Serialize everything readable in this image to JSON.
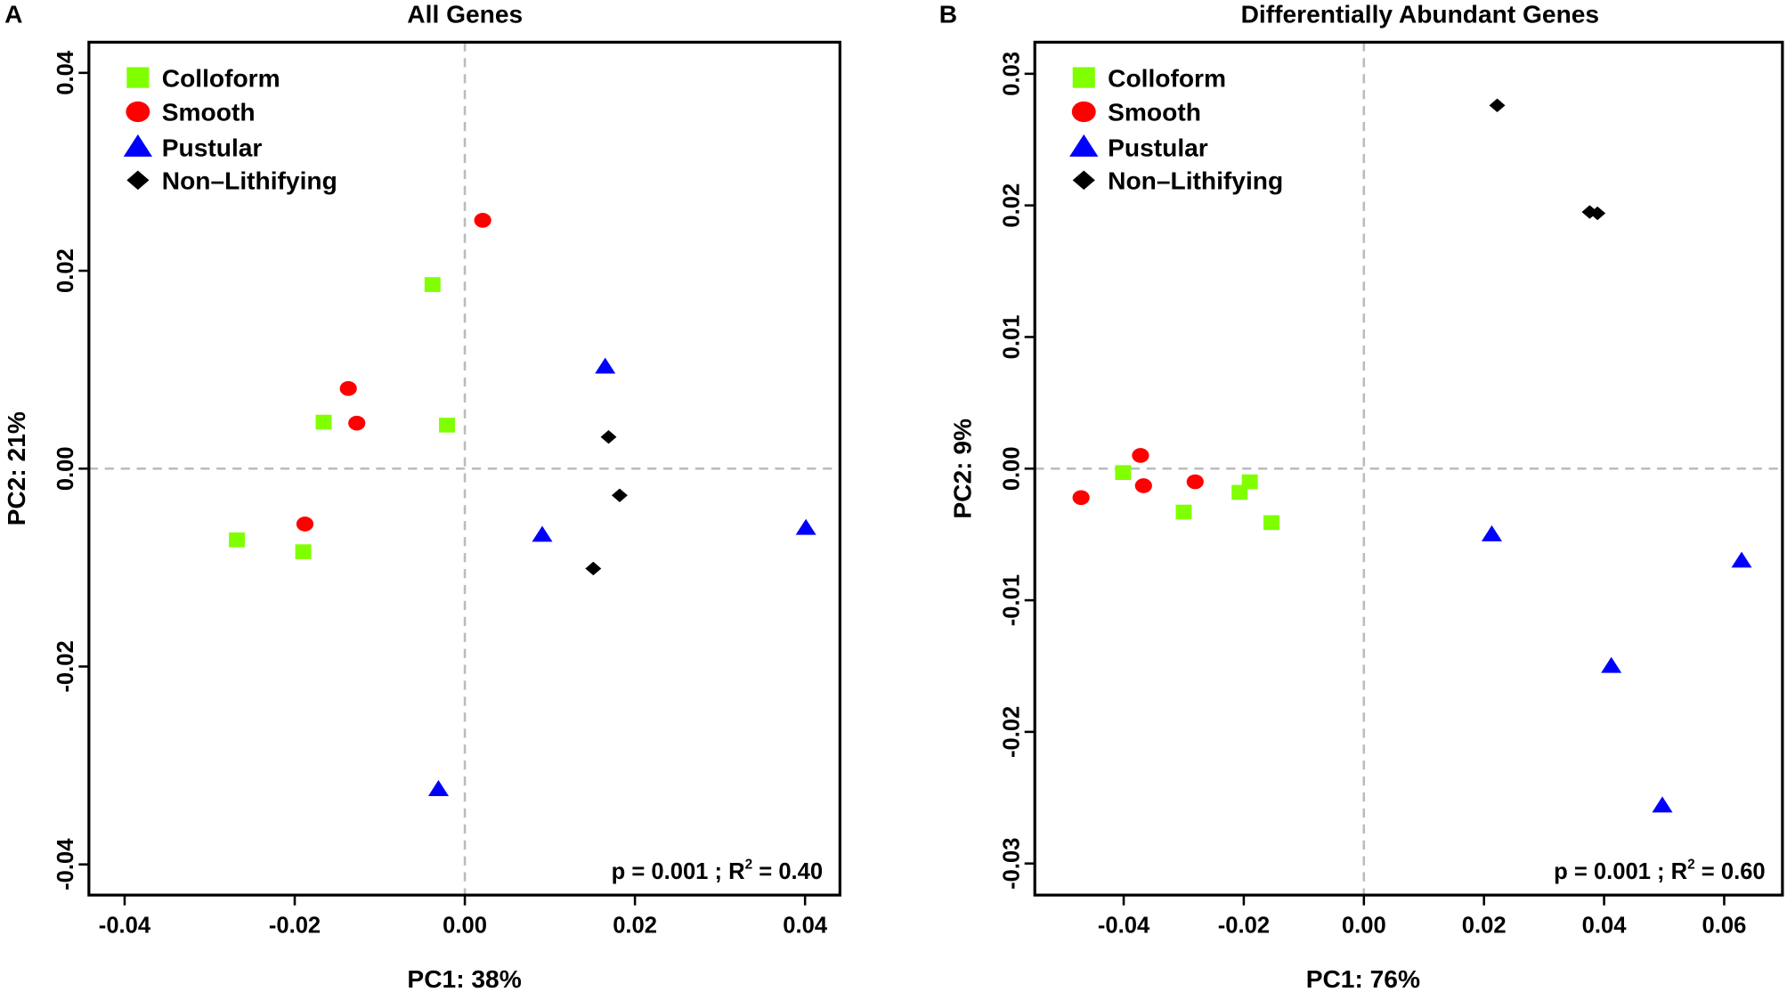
{
  "colors": {
    "Colloform": "#80ff00",
    "Smooth": "#ff0000",
    "Pustular": "#0000ff",
    "Non-Lithifying": "#000000",
    "zero_line": "#bbbbbb"
  },
  "chart_data": [
    {
      "type": "scatter",
      "panel_label": "A",
      "title": "All Genes",
      "xlabel": "PC1: 38%",
      "ylabel": "PC2: 21%",
      "xlim": [
        -0.0442,
        0.0441
      ],
      "ylim": [
        -0.0431,
        0.0431
      ],
      "xticks": [
        "-0.04",
        "-0.02",
        "0.00",
        "0.02",
        "0.04"
      ],
      "yticks": [
        "-0.04",
        "-0.02",
        "0.00",
        "0.02",
        "0.04"
      ],
      "xtick_values": [
        -0.04,
        -0.02,
        0,
        0.02,
        0.04
      ],
      "ytick_values": [
        -0.04,
        -0.02,
        0,
        0.02,
        0.04
      ],
      "legend": [
        "Colloform",
        "Smooth",
        "Pustular",
        "Non–Lithifying"
      ],
      "legend_position": "top-left",
      "annotation": {
        "p": "p = 0.001  ; R",
        "sup": "2",
        "r2": " = 0.40"
      },
      "series": [
        {
          "name": "Colloform",
          "shape": "square",
          "points": [
            [
              -0.0038,
              0.0186
            ],
            [
              -0.0166,
              0.0047
            ],
            [
              -0.0021,
              0.0044
            ],
            [
              -0.0268,
              -0.0072
            ],
            [
              -0.019,
              -0.0084
            ]
          ]
        },
        {
          "name": "Smooth",
          "shape": "circle",
          "points": [
            [
              0.0021,
              0.0251
            ],
            [
              -0.0137,
              0.0081
            ],
            [
              -0.0127,
              0.0046
            ],
            [
              -0.0188,
              -0.0056
            ]
          ]
        },
        {
          "name": "Pustular",
          "shape": "triangle",
          "points": [
            [
              0.0165,
              0.0103
            ],
            [
              0.0091,
              -0.0067
            ],
            [
              0.0401,
              -0.006
            ],
            [
              -0.0031,
              -0.0324
            ]
          ]
        },
        {
          "name": "Non-Lithifying",
          "shape": "diamond",
          "points": [
            [
              0.0169,
              0.0032
            ],
            [
              0.0182,
              -0.0027
            ],
            [
              0.0151,
              -0.0101
            ]
          ]
        }
      ]
    },
    {
      "type": "scatter",
      "panel_label": "B",
      "title": "Differentially Abundant Genes",
      "xlabel": "PC1: 76%",
      "ylabel": "PC2: 9%",
      "xlim": [
        -0.0548,
        0.0697
      ],
      "ylim": [
        -0.0324,
        0.0324
      ],
      "xticks": [
        "-0.04",
        "-0.02",
        "0.00",
        "0.02",
        "0.04",
        "0.06"
      ],
      "yticks": [
        "-0.03",
        "-0.02",
        "-0.01",
        "0.00",
        "0.01",
        "0.02",
        "0.03"
      ],
      "xtick_values": [
        -0.04,
        -0.02,
        0,
        0.02,
        0.04,
        0.06
      ],
      "ytick_values": [
        -0.03,
        -0.02,
        -0.01,
        0,
        0.01,
        0.02,
        0.03
      ],
      "legend": [
        "Colloform",
        "Smooth",
        "Pustular",
        "Non–Lithifying"
      ],
      "legend_position": "top-left",
      "annotation": {
        "p": "p = 0.001  ; R",
        "sup": "2",
        "r2": " = 0.60"
      },
      "series": [
        {
          "name": "Colloform",
          "shape": "square",
          "points": [
            [
              -0.0401,
              -0.0003
            ],
            [
              -0.03,
              -0.0033
            ],
            [
              -0.0207,
              -0.0018
            ],
            [
              -0.019,
              -0.001
            ],
            [
              -0.0154,
              -0.0041
            ]
          ]
        },
        {
          "name": "Smooth",
          "shape": "circle",
          "points": [
            [
              -0.0471,
              -0.0022
            ],
            [
              -0.0372,
              0.001
            ],
            [
              -0.0367,
              -0.0013
            ],
            [
              -0.0281,
              -0.001
            ]
          ]
        },
        {
          "name": "Pustular",
          "shape": "triangle",
          "points": [
            [
              0.0213,
              -0.005
            ],
            [
              0.0629,
              -0.007
            ],
            [
              0.0412,
              -0.015
            ],
            [
              0.0497,
              -0.0256
            ]
          ]
        },
        {
          "name": "Non-Lithifying",
          "shape": "diamond",
          "points": [
            [
              0.0222,
              0.0276
            ],
            [
              0.0376,
              0.0195
            ],
            [
              0.0389,
              0.0194
            ]
          ]
        }
      ]
    }
  ]
}
